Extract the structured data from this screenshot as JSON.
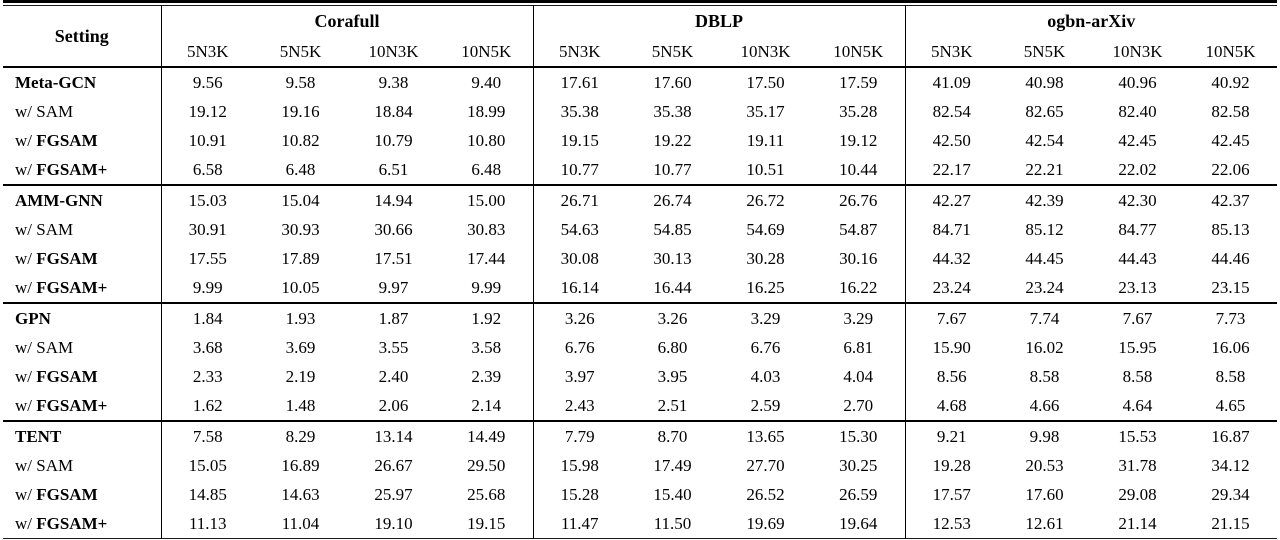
{
  "table": {
    "setting_header": "Setting",
    "groups": [
      {
        "name": "Corafull",
        "cols": [
          "5N3K",
          "5N5K",
          "10N3K",
          "10N5K"
        ]
      },
      {
        "name": "DBLP",
        "cols": [
          "5N3K",
          "5N5K",
          "10N3K",
          "10N5K"
        ]
      },
      {
        "name": "ogbn-arXiv",
        "cols": [
          "5N3K",
          "5N5K",
          "10N3K",
          "10N5K"
        ]
      }
    ],
    "blocks": [
      {
        "rows": [
          {
            "prefix": "",
            "name": "Meta-GCN",
            "bold": true,
            "values": [
              "9.56",
              "9.58",
              "9.38",
              "9.40",
              "17.61",
              "17.60",
              "17.50",
              "17.59",
              "41.09",
              "40.98",
              "40.96",
              "40.92"
            ]
          },
          {
            "prefix": "w/ ",
            "name": "SAM",
            "bold": false,
            "values": [
              "19.12",
              "19.16",
              "18.84",
              "18.99",
              "35.38",
              "35.38",
              "35.17",
              "35.28",
              "82.54",
              "82.65",
              "82.40",
              "82.58"
            ]
          },
          {
            "prefix": "w/ ",
            "name": "FGSAM",
            "bold": true,
            "values": [
              "10.91",
              "10.82",
              "10.79",
              "10.80",
              "19.15",
              "19.22",
              "19.11",
              "19.12",
              "42.50",
              "42.54",
              "42.45",
              "42.45"
            ]
          },
          {
            "prefix": "w/ ",
            "name": "FGSAM+",
            "bold": true,
            "values": [
              "6.58",
              "6.48",
              "6.51",
              "6.48",
              "10.77",
              "10.77",
              "10.51",
              "10.44",
              "22.17",
              "22.21",
              "22.02",
              "22.06"
            ]
          }
        ]
      },
      {
        "rows": [
          {
            "prefix": "",
            "name": "AMM-GNN",
            "bold": true,
            "values": [
              "15.03",
              "15.04",
              "14.94",
              "15.00",
              "26.71",
              "26.74",
              "26.72",
              "26.76",
              "42.27",
              "42.39",
              "42.30",
              "42.37"
            ]
          },
          {
            "prefix": "w/ ",
            "name": "SAM",
            "bold": false,
            "values": [
              "30.91",
              "30.93",
              "30.66",
              "30.83",
              "54.63",
              "54.85",
              "54.69",
              "54.87",
              "84.71",
              "85.12",
              "84.77",
              "85.13"
            ]
          },
          {
            "prefix": "w/ ",
            "name": "FGSAM",
            "bold": true,
            "values": [
              "17.55",
              "17.89",
              "17.51",
              "17.44",
              "30.08",
              "30.13",
              "30.28",
              "30.16",
              "44.32",
              "44.45",
              "44.43",
              "44.46"
            ]
          },
          {
            "prefix": "w/ ",
            "name": "FGSAM+",
            "bold": true,
            "values": [
              "9.99",
              "10.05",
              "9.97",
              "9.99",
              "16.14",
              "16.44",
              "16.25",
              "16.22",
              "23.24",
              "23.24",
              "23.13",
              "23.15"
            ]
          }
        ]
      },
      {
        "rows": [
          {
            "prefix": "",
            "name": "GPN",
            "bold": true,
            "values": [
              "1.84",
              "1.93",
              "1.87",
              "1.92",
              "3.26",
              "3.26",
              "3.29",
              "3.29",
              "7.67",
              "7.74",
              "7.67",
              "7.73"
            ]
          },
          {
            "prefix": "w/ ",
            "name": "SAM",
            "bold": false,
            "values": [
              "3.68",
              "3.69",
              "3.55",
              "3.58",
              "6.76",
              "6.80",
              "6.76",
              "6.81",
              "15.90",
              "16.02",
              "15.95",
              "16.06"
            ]
          },
          {
            "prefix": "w/ ",
            "name": "FGSAM",
            "bold": true,
            "values": [
              "2.33",
              "2.19",
              "2.40",
              "2.39",
              "3.97",
              "3.95",
              "4.03",
              "4.04",
              "8.56",
              "8.58",
              "8.58",
              "8.58"
            ]
          },
          {
            "prefix": "w/ ",
            "name": "FGSAM+",
            "bold": true,
            "values": [
              "1.62",
              "1.48",
              "2.06",
              "2.14",
              "2.43",
              "2.51",
              "2.59",
              "2.70",
              "4.68",
              "4.66",
              "4.64",
              "4.65"
            ]
          }
        ]
      },
      {
        "rows": [
          {
            "prefix": "",
            "name": "TENT",
            "bold": true,
            "values": [
              "7.58",
              "8.29",
              "13.14",
              "14.49",
              "7.79",
              "8.70",
              "13.65",
              "15.30",
              "9.21",
              "9.98",
              "15.53",
              "16.87"
            ]
          },
          {
            "prefix": "w/ ",
            "name": "SAM",
            "bold": false,
            "values": [
              "15.05",
              "16.89",
              "26.67",
              "29.50",
              "15.98",
              "17.49",
              "27.70",
              "30.25",
              "19.28",
              "20.53",
              "31.78",
              "34.12"
            ]
          },
          {
            "prefix": "w/ ",
            "name": "FGSAM",
            "bold": true,
            "values": [
              "14.85",
              "14.63",
              "25.97",
              "25.68",
              "15.28",
              "15.40",
              "26.52",
              "26.59",
              "17.57",
              "17.60",
              "29.08",
              "29.34"
            ]
          },
          {
            "prefix": "w/ ",
            "name": "FGSAM+",
            "bold": true,
            "values": [
              "11.13",
              "11.04",
              "19.10",
              "19.15",
              "11.47",
              "11.50",
              "19.69",
              "19.64",
              "12.53",
              "12.61",
              "21.14",
              "21.15"
            ]
          }
        ]
      }
    ]
  }
}
